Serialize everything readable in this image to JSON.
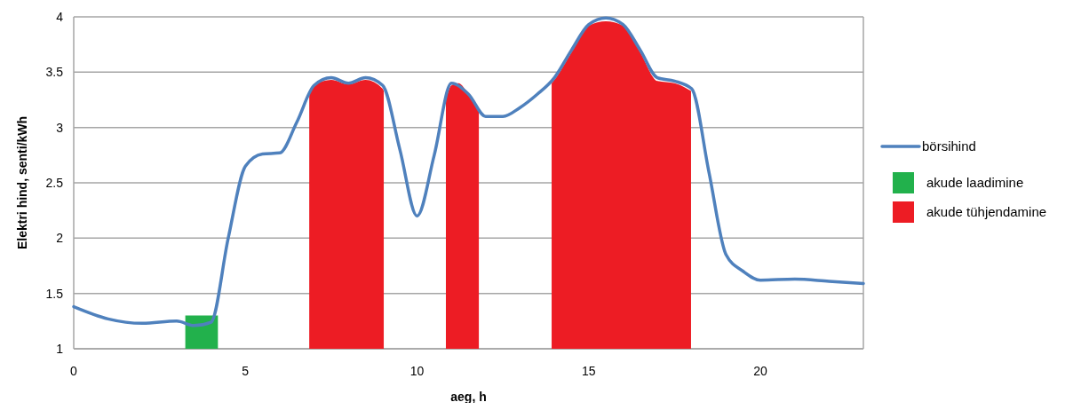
{
  "chart_data": {
    "type": "line",
    "xlabel": "aeg, h",
    "ylabel": "Elektri hind, senti/kWh",
    "xlim": [
      0,
      23
    ],
    "xticks": [
      0,
      5,
      10,
      15,
      20
    ],
    "ylim": [
      1,
      4
    ],
    "yticks": [
      1,
      1.5,
      2,
      2.5,
      3,
      3.5,
      4
    ],
    "grid": "y",
    "legend": "right",
    "series": [
      {
        "name": "börsihind",
        "color": "#4f81bd",
        "x": [
          0,
          1,
          2,
          3,
          3.5,
          4,
          4.5,
          5,
          5.5,
          6,
          6.5,
          7,
          7.5,
          8,
          8.5,
          9,
          9.5,
          10,
          10.5,
          11,
          11.5,
          12,
          12.5,
          13,
          13.5,
          14,
          14.5,
          15,
          15.5,
          16,
          16.5,
          17,
          17.5,
          18,
          18.5,
          19,
          19.5,
          20,
          21,
          22,
          23
        ],
        "values": [
          1.38,
          1.27,
          1.23,
          1.25,
          1.21,
          1.24,
          2.0,
          2.65,
          2.76,
          2.77,
          3.05,
          3.38,
          3.45,
          3.4,
          3.45,
          3.38,
          2.8,
          2.2,
          2.75,
          3.4,
          3.3,
          3.1,
          3.1,
          3.18,
          3.3,
          3.45,
          3.7,
          3.93,
          3.99,
          3.93,
          3.7,
          3.45,
          3.42,
          3.35,
          2.6,
          1.85,
          1.7,
          1.62,
          1.63,
          1.61,
          1.59
        ]
      },
      {
        "name": "akude laadimine",
        "type": "area",
        "color": "#22b14c",
        "x": [
          3.25,
          4.2
        ],
        "values": [
          1.3,
          1.3
        ]
      },
      {
        "name": "akude tühjendamine",
        "type": "area",
        "color": "#ed1c24",
        "x": [
          6.86,
          7,
          7.5,
          8,
          8.5,
          9,
          9.03,
          10,
          10.84,
          11,
          11.2,
          11.5,
          11.8,
          12.8,
          13.92,
          14,
          14.5,
          15,
          15.5,
          16,
          16.5,
          17,
          17.5,
          17.98
        ],
        "values": [
          3.33,
          3.38,
          3.43,
          3.39,
          3.43,
          3.35,
          3.33,
          null,
          3.25,
          3.38,
          3.4,
          3.3,
          3.15,
          null,
          3.4,
          3.43,
          3.68,
          3.92,
          3.96,
          3.92,
          3.68,
          3.42,
          3.4,
          3.33
        ]
      }
    ]
  }
}
